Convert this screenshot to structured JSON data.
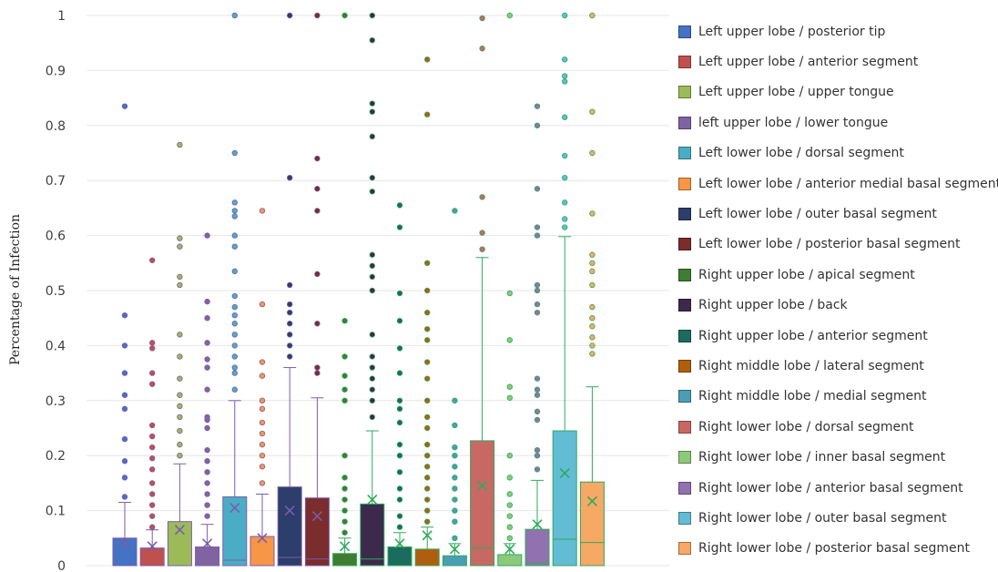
{
  "chart_data": {
    "type": "box",
    "ylabel": "Percentage of Infection",
    "ylim": [
      0,
      1
    ],
    "yticks": [
      "0",
      "0.1",
      "0.2",
      "0.3",
      "0.4",
      "0.5",
      "0.6",
      "0.7",
      "0.8",
      "0.9",
      "1"
    ],
    "grid": true,
    "legend_position": "right",
    "series": [
      {
        "name": "Left upper lobe / posterior tip",
        "color": "#4472C4",
        "min": 0,
        "q1": 0.0,
        "median": 0.0,
        "q3": 0.05,
        "max": 0.115,
        "mean": 0.04,
        "outliers": [
          0.125,
          0.16,
          0.19,
          0.23,
          0.285,
          0.31,
          0.35,
          0.4,
          0.455,
          0.835
        ]
      },
      {
        "name": "Left upper lobe / anterior segment",
        "color": "#C0504D",
        "min": 0,
        "q1": 0.0,
        "median": 0.0,
        "q3": 0.032,
        "max": 0.065,
        "mean": 0.035,
        "outliers": [
          0.07,
          0.09,
          0.11,
          0.13,
          0.15,
          0.175,
          0.195,
          0.215,
          0.235,
          0.255,
          0.33,
          0.35,
          0.395,
          0.405,
          0.555
        ]
      },
      {
        "name": "Left upper lobe / upper tongue",
        "color": "#9BBB59",
        "min": 0,
        "q1": 0.0,
        "median": 0.0,
        "q3": 0.08,
        "max": 0.185,
        "mean": 0.065,
        "outliers": [
          0.2,
          0.22,
          0.245,
          0.27,
          0.29,
          0.31,
          0.34,
          0.38,
          0.42,
          0.51,
          0.525,
          0.58,
          0.595,
          0.765
        ]
      },
      {
        "name": "left upper lobe / lower tongue",
        "color": "#8064A2",
        "min": 0,
        "q1": 0.0,
        "median": 0.0,
        "q3": 0.034,
        "max": 0.075,
        "mean": 0.04,
        "outliers": [
          0.09,
          0.11,
          0.13,
          0.15,
          0.17,
          0.19,
          0.21,
          0.25,
          0.265,
          0.27,
          0.32,
          0.36,
          0.375,
          0.405,
          0.45,
          0.48,
          0.6
        ]
      },
      {
        "name": "Left lower lobe / dorsal segment",
        "color": "#4BACC6",
        "min": 0,
        "q1": 0.0,
        "median": 0.01,
        "q3": 0.125,
        "max": 0.3,
        "mean": 0.105,
        "outliers": [
          0.32,
          0.35,
          0.36,
          0.38,
          0.4,
          0.42,
          0.44,
          0.455,
          0.47,
          0.49,
          0.535,
          0.58,
          0.6,
          0.635,
          0.645,
          0.66,
          0.75,
          1.0
        ]
      },
      {
        "name": "Left lower lobe / anterior medial basal segment",
        "color": "#F79646",
        "min": 0,
        "q1": 0.0,
        "median": 0.0,
        "q3": 0.053,
        "max": 0.13,
        "mean": 0.05,
        "outliers": [
          0.15,
          0.18,
          0.2,
          0.22,
          0.24,
          0.26,
          0.285,
          0.3,
          0.345,
          0.37,
          0.475,
          0.645
        ]
      },
      {
        "name": "Left lower lobe / outer basal segment",
        "color": "#2C3E6B",
        "min": 0,
        "q1": 0.0,
        "median": 0.015,
        "q3": 0.143,
        "max": 0.36,
        "mean": 0.1,
        "outliers": [
          0.38,
          0.4,
          0.42,
          0.44,
          0.46,
          0.475,
          0.51,
          0.705,
          1.0
        ]
      },
      {
        "name": "Left lower lobe / posterior basal segment",
        "color": "#7B2C2C",
        "min": 0,
        "q1": 0.0,
        "median": 0.012,
        "q3": 0.123,
        "max": 0.305,
        "mean": 0.09,
        "outliers": [
          0.35,
          0.36,
          0.44,
          0.53,
          0.645,
          0.685,
          0.74,
          1.0
        ]
      },
      {
        "name": "Right upper lobe / apical segment",
        "color": "#3E7D32",
        "min": 0,
        "q1": 0.0,
        "median": 0.0,
        "q3": 0.022,
        "max": 0.05,
        "mean": 0.035,
        "outliers": [
          0.06,
          0.08,
          0.1,
          0.12,
          0.14,
          0.16,
          0.2,
          0.3,
          0.32,
          0.345,
          0.38,
          0.445,
          1.0
        ]
      },
      {
        "name": "Right upper lobe / back",
        "color": "#3C2A4D",
        "min": 0,
        "q1": 0.0,
        "median": 0.012,
        "q3": 0.112,
        "max": 0.245,
        "mean": 0.12,
        "outliers": [
          0.27,
          0.3,
          0.32,
          0.34,
          0.36,
          0.38,
          0.42,
          0.5,
          0.525,
          0.545,
          0.565,
          0.68,
          0.705,
          0.78,
          0.825,
          0.84,
          0.955,
          1.0
        ]
      },
      {
        "name": "Right upper lobe / anterior segment",
        "color": "#1B6B5E",
        "min": 0,
        "q1": 0.0,
        "median": 0.0,
        "q3": 0.034,
        "max": 0.06,
        "mean": 0.04,
        "outliers": [
          0.07,
          0.09,
          0.12,
          0.14,
          0.17,
          0.2,
          0.22,
          0.26,
          0.285,
          0.3,
          0.35,
          0.395,
          0.445,
          0.495,
          0.615,
          0.655
        ]
      },
      {
        "name": "Right middle lobe / lateral segment",
        "color": "#B05E0E",
        "min": 0,
        "q1": 0.0,
        "median": 0.0,
        "q3": 0.03,
        "max": 0.07,
        "mean": 0.055,
        "outliers": [
          0.08,
          0.1,
          0.12,
          0.14,
          0.16,
          0.18,
          0.2,
          0.22,
          0.25,
          0.27,
          0.3,
          0.34,
          0.37,
          0.41,
          0.43,
          0.46,
          0.5,
          0.55,
          0.82,
          0.92
        ]
      },
      {
        "name": "Right middle lobe / medial segment",
        "color": "#4A9DB5",
        "min": 0,
        "q1": 0.0,
        "median": 0.0,
        "q3": 0.018,
        "max": 0.04,
        "mean": 0.03,
        "outliers": [
          0.05,
          0.08,
          0.1,
          0.12,
          0.14,
          0.16,
          0.18,
          0.2,
          0.215,
          0.255,
          0.3,
          0.645
        ]
      },
      {
        "name": "Right lower lobe / dorsal segment",
        "color": "#C86864",
        "min": 0,
        "q1": 0.0,
        "median": 0.032,
        "q3": 0.227,
        "max": 0.56,
        "mean": 0.145,
        "outliers": [
          0.575,
          0.605,
          0.67,
          0.94,
          0.995
        ]
      },
      {
        "name": "Right lower lobe / inner basal segment",
        "color": "#8CC97A",
        "min": 0,
        "q1": 0.0,
        "median": 0.0,
        "q3": 0.02,
        "max": 0.04,
        "mean": 0.03,
        "outliers": [
          0.05,
          0.07,
          0.09,
          0.11,
          0.13,
          0.16,
          0.2,
          0.305,
          0.325,
          0.41,
          0.495,
          1.0
        ]
      },
      {
        "name": "Right lower lobe / anterior basal segment",
        "color": "#9271B0",
        "min": 0,
        "q1": 0.0,
        "median": 0.005,
        "q3": 0.066,
        "max": 0.155,
        "mean": 0.075,
        "outliers": [
          0.175,
          0.2,
          0.21,
          0.265,
          0.28,
          0.31,
          0.32,
          0.34,
          0.46,
          0.475,
          0.5,
          0.51,
          0.6,
          0.615,
          0.685,
          0.8,
          0.835
        ]
      },
      {
        "name": "Right lower lobe / outer basal segment",
        "color": "#62BCD4",
        "min": 0,
        "q1": 0.0,
        "median": 0.048,
        "q3": 0.245,
        "max": 0.598,
        "mean": 0.168,
        "outliers": [
          0.615,
          0.63,
          0.66,
          0.705,
          0.745,
          0.815,
          0.88,
          0.89,
          0.92,
          1.0
        ]
      },
      {
        "name": "Right lower lobe / posterior basal segment",
        "color": "#F6A865",
        "min": 0,
        "q1": 0.0,
        "median": 0.042,
        "q3": 0.152,
        "max": 0.325,
        "mean": 0.117,
        "outliers": [
          0.385,
          0.4,
          0.415,
          0.435,
          0.45,
          0.47,
          0.51,
          0.535,
          0.55,
          0.565,
          0.64,
          0.75,
          0.825,
          1.0
        ]
      }
    ]
  },
  "colors": {
    "whisker_light": "#7A5DAA",
    "whisker_dark": "#2EAA5A",
    "grid": "#E6E6E6"
  }
}
